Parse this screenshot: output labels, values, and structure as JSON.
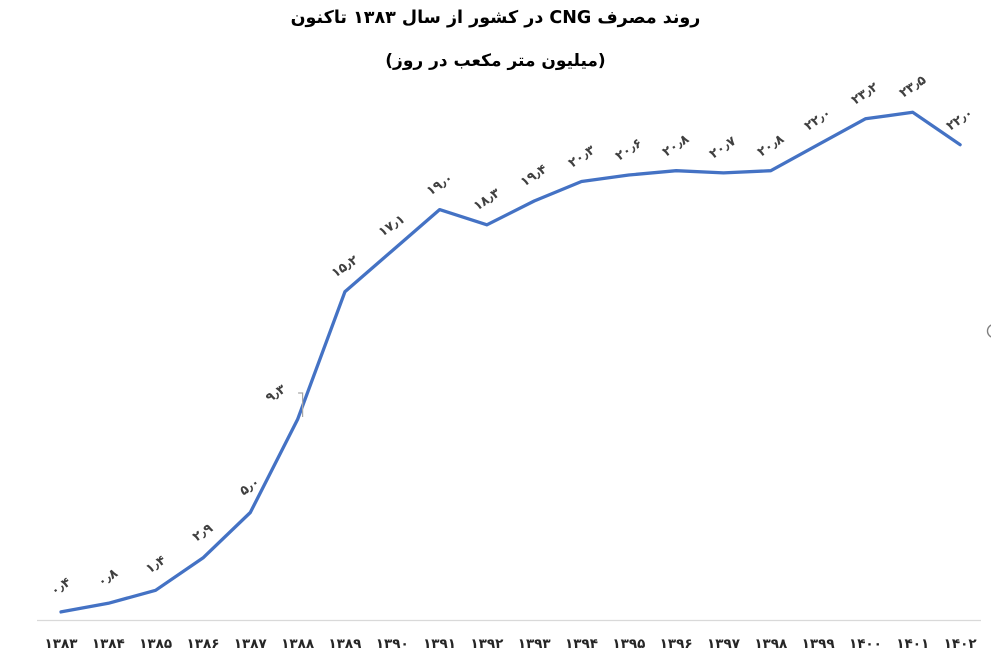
{
  "title": {
    "line1": "روند مصرف CNG در کشور از سال ۱۳۸۳ تاکنون",
    "line2": "(میلیون متر مکعب در روز)"
  },
  "chart_data": {
    "type": "line",
    "title": "روند مصرف CNG در کشور از سال ۱۳۸۳ تاکنون",
    "subtitle": "(میلیون متر مکعب در روز)",
    "categories": [
      "۱۳۸۳",
      "۱۳۸۴",
      "۱۳۸۵",
      "۱۳۸۶",
      "۱۳۸۷",
      "۱۳۸۸",
      "۱۳۸۹",
      "۱۳۹۰",
      "۱۳۹۱",
      "۱۳۹۲",
      "۱۳۹۳",
      "۱۳۹۴",
      "۱۳۹۵",
      "۱۳۹۶",
      "۱۳۹۷",
      "۱۳۹۸",
      "۱۳۹۹",
      "۱۴۰۰",
      "۱۴۰۱",
      "۱۴۰۲"
    ],
    "years": [
      1383,
      1384,
      1385,
      1386,
      1387,
      1388,
      1389,
      1390,
      1391,
      1392,
      1393,
      1394,
      1395,
      1396,
      1397,
      1398,
      1399,
      1400,
      1401,
      1402
    ],
    "values": [
      0.4,
      0.8,
      1.4,
      2.9,
      5.0,
      9.3,
      15.2,
      17.1,
      19.0,
      18.3,
      19.4,
      20.3,
      20.6,
      20.8,
      20.7,
      20.8,
      22.0,
      23.2,
      23.5,
      22.0
    ],
    "value_labels": [
      "۰٫۴",
      "۰٫۸",
      "۱٫۴",
      "۲٫۹",
      "۵٫۰",
      "۹٫۳",
      "۱۵٫۲",
      "۱۷٫۱",
      "۱۹٫۰",
      "۱۸٫۳",
      "۱۹٫۴",
      "۲۰٫۳",
      "۲۰٫۶",
      "۲۰٫۸",
      "۲۰٫۷",
      "۲۰٫۸",
      "۲۲٫۰",
      "۲۳٫۲",
      "۲۳٫۵",
      "۲۲٫۰"
    ],
    "ylim": [
      0,
      25
    ],
    "xlabel": "",
    "ylabel": "",
    "grid": false,
    "legend": false,
    "data_labels_shown": true,
    "leader_line_on_label_index": 5
  },
  "colors": {
    "line": "#4472C4",
    "data_label": "#404040",
    "axis_line": "#D9D9D9",
    "axis_label": "#262626",
    "title": "#000000",
    "leader": "#A6A6A6",
    "clipped_glyph": "#7F7F7F"
  }
}
